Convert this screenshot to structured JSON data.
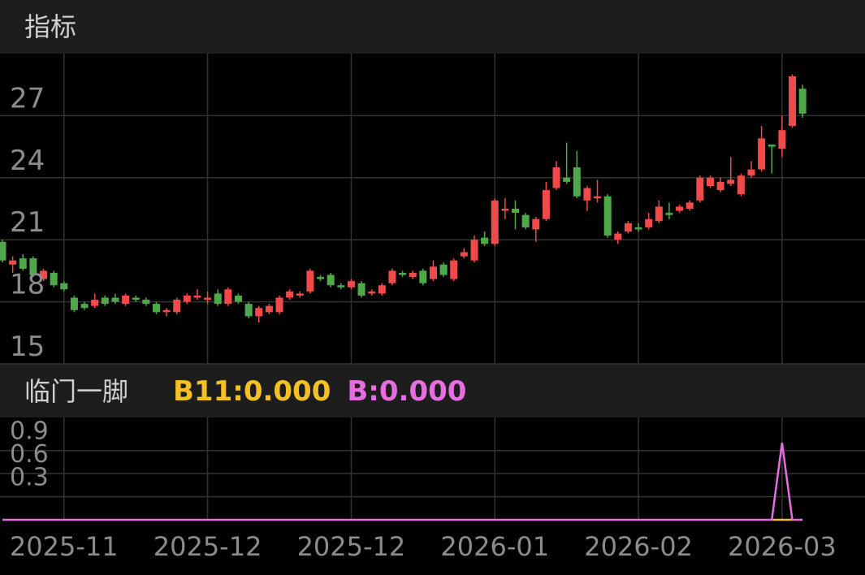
{
  "header": {
    "title": "指标"
  },
  "chart_data": [
    {
      "type": "candlestick",
      "categories": [
        null,
        null,
        null,
        null,
        null,
        null,
        "2025-11",
        null,
        null,
        null,
        null,
        null,
        null,
        null,
        null,
        null,
        null,
        null,
        null,
        null,
        "2025-12",
        null,
        null,
        null,
        null,
        null,
        null,
        null,
        null,
        null,
        null,
        null,
        null,
        null,
        "2025-12",
        null,
        null,
        null,
        null,
        null,
        null,
        null,
        null,
        null,
        null,
        null,
        null,
        null,
        "2026-01",
        null,
        null,
        null,
        null,
        null,
        null,
        null,
        null,
        null,
        null,
        null,
        null,
        null,
        "2026-02",
        null,
        null,
        null,
        null,
        null,
        null,
        null,
        null,
        null,
        null,
        null,
        null,
        null,
        "2026-03",
        null,
        null
      ],
      "open": [
        20.9,
        19.8,
        20.1,
        20.1,
        19.1,
        19.4,
        18.9,
        18.2,
        17.9,
        17.8,
        18.2,
        18.2,
        17.9,
        18.2,
        18.1,
        17.9,
        17.5,
        17.5,
        18.0,
        18.2,
        18.1,
        18.4,
        17.9,
        18.3,
        17.9,
        17.3,
        17.5,
        17.5,
        18.2,
        18.3,
        18.5,
        19.2,
        19.3,
        18.8,
        18.7,
        18.9,
        18.4,
        18.4,
        18.9,
        19.4,
        19.2,
        19.5,
        19.1,
        19.8,
        19.1,
        20.2,
        20.0,
        21.1,
        20.8,
        22.4,
        22.5,
        22.2,
        21.5,
        22.0,
        23.5,
        24.0,
        24.5,
        22.9,
        23.0,
        23.1,
        21.0,
        21.4,
        21.6,
        21.6,
        21.9,
        22.3,
        22.4,
        22.5,
        22.9,
        23.6,
        23.4,
        23.7,
        23.2,
        24.1,
        24.4,
        25.6,
        25.4,
        26.5,
        28.3
      ],
      "high": [
        21.0,
        20.2,
        20.3,
        20.2,
        19.6,
        19.5,
        19.0,
        18.3,
        18.0,
        18.4,
        18.3,
        18.4,
        18.4,
        18.3,
        18.2,
        18.0,
        17.7,
        18.2,
        18.4,
        18.6,
        18.5,
        18.6,
        18.7,
        18.4,
        18.0,
        17.8,
        17.9,
        18.3,
        18.6,
        18.5,
        19.6,
        19.3,
        19.4,
        18.9,
        19.1,
        19.0,
        18.6,
        18.9,
        19.6,
        19.5,
        19.5,
        19.6,
        20.0,
        19.9,
        20.1,
        20.6,
        21.2,
        21.4,
        23.0,
        23.0,
        22.9,
        22.3,
        22.1,
        23.8,
        24.8,
        25.7,
        25.3,
        23.6,
        23.9,
        23.2,
        21.4,
        21.9,
        21.8,
        22.3,
        22.9,
        22.8,
        22.7,
        22.9,
        24.1,
        24.1,
        24.0,
        25.0,
        24.2,
        24.8,
        26.5,
        25.6,
        27.0,
        29.0,
        28.5
      ],
      "low": [
        19.9,
        19.4,
        19.5,
        19.2,
        19.0,
        18.7,
        18.5,
        17.5,
        17.6,
        17.7,
        17.8,
        17.9,
        17.8,
        18.0,
        17.8,
        17.4,
        17.3,
        17.4,
        17.9,
        18.1,
        17.9,
        17.8,
        17.8,
        17.9,
        17.2,
        17.0,
        17.4,
        17.4,
        18.1,
        18.2,
        18.4,
        19.0,
        18.7,
        18.6,
        18.6,
        18.2,
        18.3,
        18.3,
        18.8,
        19.2,
        19.1,
        18.8,
        19.0,
        19.2,
        19.0,
        20.1,
        19.9,
        20.7,
        20.7,
        22.0,
        21.5,
        21.5,
        20.9,
        21.9,
        23.4,
        23.7,
        23.0,
        22.4,
        22.8,
        21.1,
        20.8,
        21.3,
        21.4,
        21.5,
        21.8,
        22.0,
        22.3,
        22.4,
        22.8,
        23.5,
        23.3,
        23.6,
        23.1,
        24.0,
        24.3,
        24.2,
        25.0,
        26.4,
        26.9
      ],
      "close": [
        20.0,
        20.0,
        19.6,
        19.3,
        19.5,
        18.8,
        18.6,
        17.6,
        17.7,
        18.1,
        17.9,
        18.0,
        18.3,
        18.1,
        17.9,
        17.5,
        17.6,
        18.1,
        18.3,
        18.3,
        18.2,
        17.9,
        18.6,
        18.0,
        17.3,
        17.7,
        17.8,
        18.2,
        18.5,
        18.4,
        19.5,
        19.1,
        18.8,
        18.7,
        19.0,
        18.3,
        18.5,
        18.8,
        19.5,
        19.3,
        19.4,
        18.9,
        19.7,
        19.3,
        20.0,
        20.4,
        21.0,
        20.8,
        22.9,
        22.5,
        22.3,
        21.6,
        22.0,
        23.4,
        24.5,
        23.8,
        23.1,
        23.5,
        23.1,
        21.2,
        21.3,
        21.8,
        21.5,
        22.0,
        22.6,
        22.2,
        22.6,
        22.8,
        24.0,
        24.0,
        23.8,
        23.9,
        24.1,
        24.4,
        25.9,
        25.5,
        26.3,
        28.9,
        27.1
      ],
      "up_color": "#f04a4a",
      "down_color": "#4fa94a",
      "ylim": [
        15,
        30
      ],
      "yticks": [
        15,
        18,
        21,
        24,
        27
      ],
      "grid": true
    },
    {
      "type": "line",
      "title": "临门一脚",
      "series": [
        {
          "label": "B11:0.000",
          "color": "#f5c023",
          "values": [
            null,
            null,
            null,
            null,
            null,
            null,
            null,
            null,
            null,
            null,
            null,
            null,
            null,
            null,
            null,
            null,
            null,
            null,
            null,
            null,
            null,
            null,
            null,
            null,
            null,
            null,
            null,
            null,
            null,
            null,
            null,
            null,
            null,
            null,
            null,
            null,
            null,
            null,
            null,
            null,
            null,
            null,
            null,
            null,
            null,
            null,
            null,
            null,
            null,
            null,
            null,
            null,
            null,
            null,
            null,
            null,
            null,
            null,
            null,
            null,
            null,
            null,
            null,
            null,
            null,
            null,
            null,
            null,
            null,
            null,
            null,
            null,
            null,
            null,
            null,
            0,
            0,
            0,
            null
          ]
        },
        {
          "label": "B:0.000",
          "color": "#e66ee0",
          "values": [
            0,
            0,
            0,
            0,
            0,
            0,
            0,
            0,
            0,
            0,
            0,
            0,
            0,
            0,
            0,
            0,
            0,
            0,
            0,
            0,
            0,
            0,
            0,
            0,
            0,
            0,
            0,
            0,
            0,
            0,
            0,
            0,
            0,
            0,
            0,
            0,
            0,
            0,
            0,
            0,
            0,
            0,
            0,
            0,
            0,
            0,
            0,
            0,
            0,
            0,
            0,
            0,
            0,
            0,
            0,
            0,
            0,
            0,
            0,
            0,
            0,
            0,
            0,
            0,
            0,
            0,
            0,
            0,
            0,
            0,
            0,
            0,
            0,
            0,
            0,
            0,
            1,
            0,
            0
          ]
        }
      ],
      "ylim": [
        0,
        1.33
      ],
      "yticks": [
        0.3,
        0.6,
        0.9
      ],
      "grid": true
    }
  ]
}
